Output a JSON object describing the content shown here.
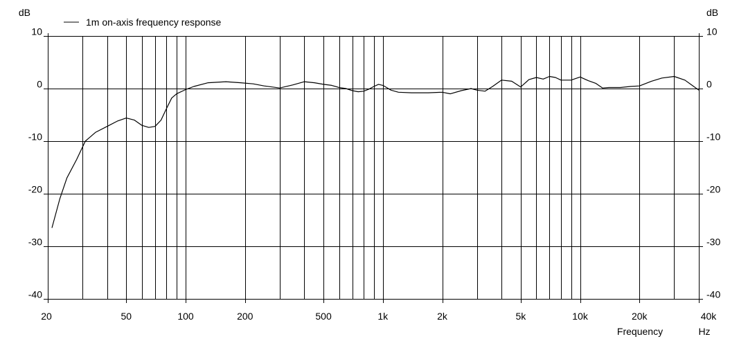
{
  "chart_data": {
    "type": "line",
    "legend": "1m on-axis frequency response",
    "legend_position": "top-left",
    "x_scale": "log",
    "xlim": [
      20,
      40000
    ],
    "ylim": [
      -40,
      10
    ],
    "grid": true,
    "y_unit": "dB",
    "x_unit": "Hz",
    "xlabel": "Frequency",
    "y_ticks": [
      10,
      0,
      -10,
      -20,
      -30,
      -40
    ],
    "y_tick_labels_left": [
      "10",
      "0",
      "-10",
      "-20",
      "-30",
      "-40"
    ],
    "y_tick_labels_right": [
      "10",
      "0",
      "-10",
      "-20",
      "-30",
      "-40"
    ],
    "x_tick_values": [
      20,
      50,
      100,
      200,
      500,
      1000,
      2000,
      5000,
      10000,
      20000,
      40000
    ],
    "x_tick_labels": [
      "20",
      "50",
      "100",
      "200",
      "500",
      "1k",
      "2k",
      "5k",
      "10k",
      "20k",
      "40k"
    ],
    "x_gridlines": [
      30,
      40,
      50,
      60,
      70,
      80,
      90,
      100,
      200,
      300,
      400,
      500,
      600,
      700,
      800,
      900,
      1000,
      2000,
      3000,
      4000,
      5000,
      6000,
      7000,
      8000,
      9000,
      10000,
      20000,
      30000
    ],
    "series": [
      {
        "name": "1m on-axis frequency response",
        "color": "#000000",
        "x": [
          21,
          23,
          25,
          28,
          31,
          35,
          40,
          45,
          50,
          55,
          60,
          65,
          70,
          75,
          80,
          85,
          90,
          100,
          110,
          130,
          160,
          190,
          220,
          250,
          300,
          350,
          400,
          450,
          500,
          550,
          600,
          650,
          700,
          750,
          800,
          850,
          900,
          950,
          1000,
          1100,
          1200,
          1400,
          1700,
          2000,
          2200,
          2500,
          2800,
          3000,
          3300,
          3600,
          4000,
          4500,
          5000,
          5500,
          6000,
          6500,
          7000,
          7500,
          8000,
          9000,
          10000,
          11000,
          12000,
          13000,
          14000,
          16000,
          18000,
          20000,
          23000,
          26000,
          30000,
          34000,
          37000,
          40000
        ],
        "y": [
          -26.5,
          -21,
          -17,
          -13.5,
          -10,
          -8.3,
          -7.2,
          -6.2,
          -5.6,
          -6,
          -7,
          -7.4,
          -7.2,
          -6,
          -3.8,
          -1.8,
          -1,
          -0.2,
          0.4,
          1.1,
          1.3,
          1.1,
          0.9,
          0.5,
          0.1,
          0.7,
          1.3,
          1.1,
          0.8,
          0.6,
          0.2,
          0,
          -0.4,
          -0.6,
          -0.5,
          -0.1,
          0.4,
          0.8,
          0.6,
          -0.3,
          -0.7,
          -0.8,
          -0.8,
          -0.7,
          -1,
          -0.4,
          0,
          -0.3,
          -0.5,
          0.4,
          1.6,
          1.4,
          0.3,
          1.7,
          2.1,
          1.8,
          2.3,
          2.1,
          1.6,
          1.6,
          2.2,
          1.5,
          1,
          0.1,
          0.2,
          0.2,
          0.4,
          0.5,
          1.4,
          2,
          2.3,
          1.6,
          0.6,
          -0.3
        ]
      }
    ]
  }
}
